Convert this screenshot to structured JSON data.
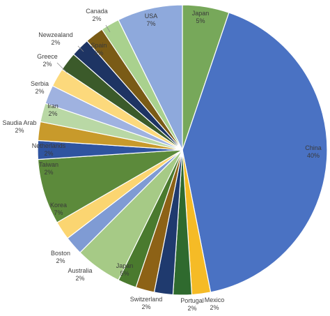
{
  "chart_data": {
    "type": "pie",
    "title": "",
    "unit": "%",
    "slices": [
      {
        "label": "Japan",
        "value_label": "5%",
        "value": 5,
        "color": "#77a85a"
      },
      {
        "label": "China",
        "value_label": "40%",
        "value": 40,
        "color": "#4a72c3"
      },
      {
        "label": "Mexico",
        "value_label": "2%",
        "value": 2,
        "color": "#f5bb26"
      },
      {
        "label": "Portugal",
        "value_label": "2%",
        "value": 2,
        "color": "#2f6a2e"
      },
      {
        "label": "",
        "value_label": "",
        "value": 2,
        "color": "#1f3a6e"
      },
      {
        "label": "Switzerland",
        "value_label": "2%",
        "value": 2,
        "color": "#8d6216"
      },
      {
        "label": "",
        "value_label": "",
        "value": 2,
        "color": "#4a7a2e"
      },
      {
        "label": "Japan",
        "value_label": "5%",
        "value": 5,
        "color": "#a6ca86"
      },
      {
        "label": "Australia",
        "value_label": "2%",
        "value": 2,
        "color": "#7f9bd4"
      },
      {
        "label": "Boston",
        "value_label": "2%",
        "value": 2,
        "color": "#fbd571"
      },
      {
        "label": "Korea",
        "value_label": "7%",
        "value": 7,
        "color": "#5c8a3b"
      },
      {
        "label": "Taiwan",
        "value_label": "2%",
        "value": 2,
        "color": "#2f54a0"
      },
      {
        "label": "Netherlands",
        "value_label": "2%",
        "value": 2,
        "color": "#c89a2b"
      },
      {
        "label": "Saudia Arab",
        "value_label": "2%",
        "value": 2,
        "color": "#b9d8a5"
      },
      {
        "label": "Iran",
        "value_label": "2%",
        "value": 2,
        "color": "#9fb2e0"
      },
      {
        "label": "Serbia",
        "value_label": "2%",
        "value": 2,
        "color": "#fcd97c"
      },
      {
        "label": "Greece",
        "value_label": "2%",
        "value": 2,
        "color": "#3b5a2a"
      },
      {
        "label": "Newzealand",
        "value_label": "2%",
        "value": 2,
        "color": "#1e3463"
      },
      {
        "label": "Spain",
        "value_label": "2%",
        "value": 2,
        "color": "#7a5b16"
      },
      {
        "label": "Canada",
        "value_label": "2%",
        "value": 2,
        "color": "#a9d18e"
      },
      {
        "label": "USA",
        "value_label": "7%",
        "value": 7,
        "color": "#8ea9dc"
      }
    ]
  }
}
